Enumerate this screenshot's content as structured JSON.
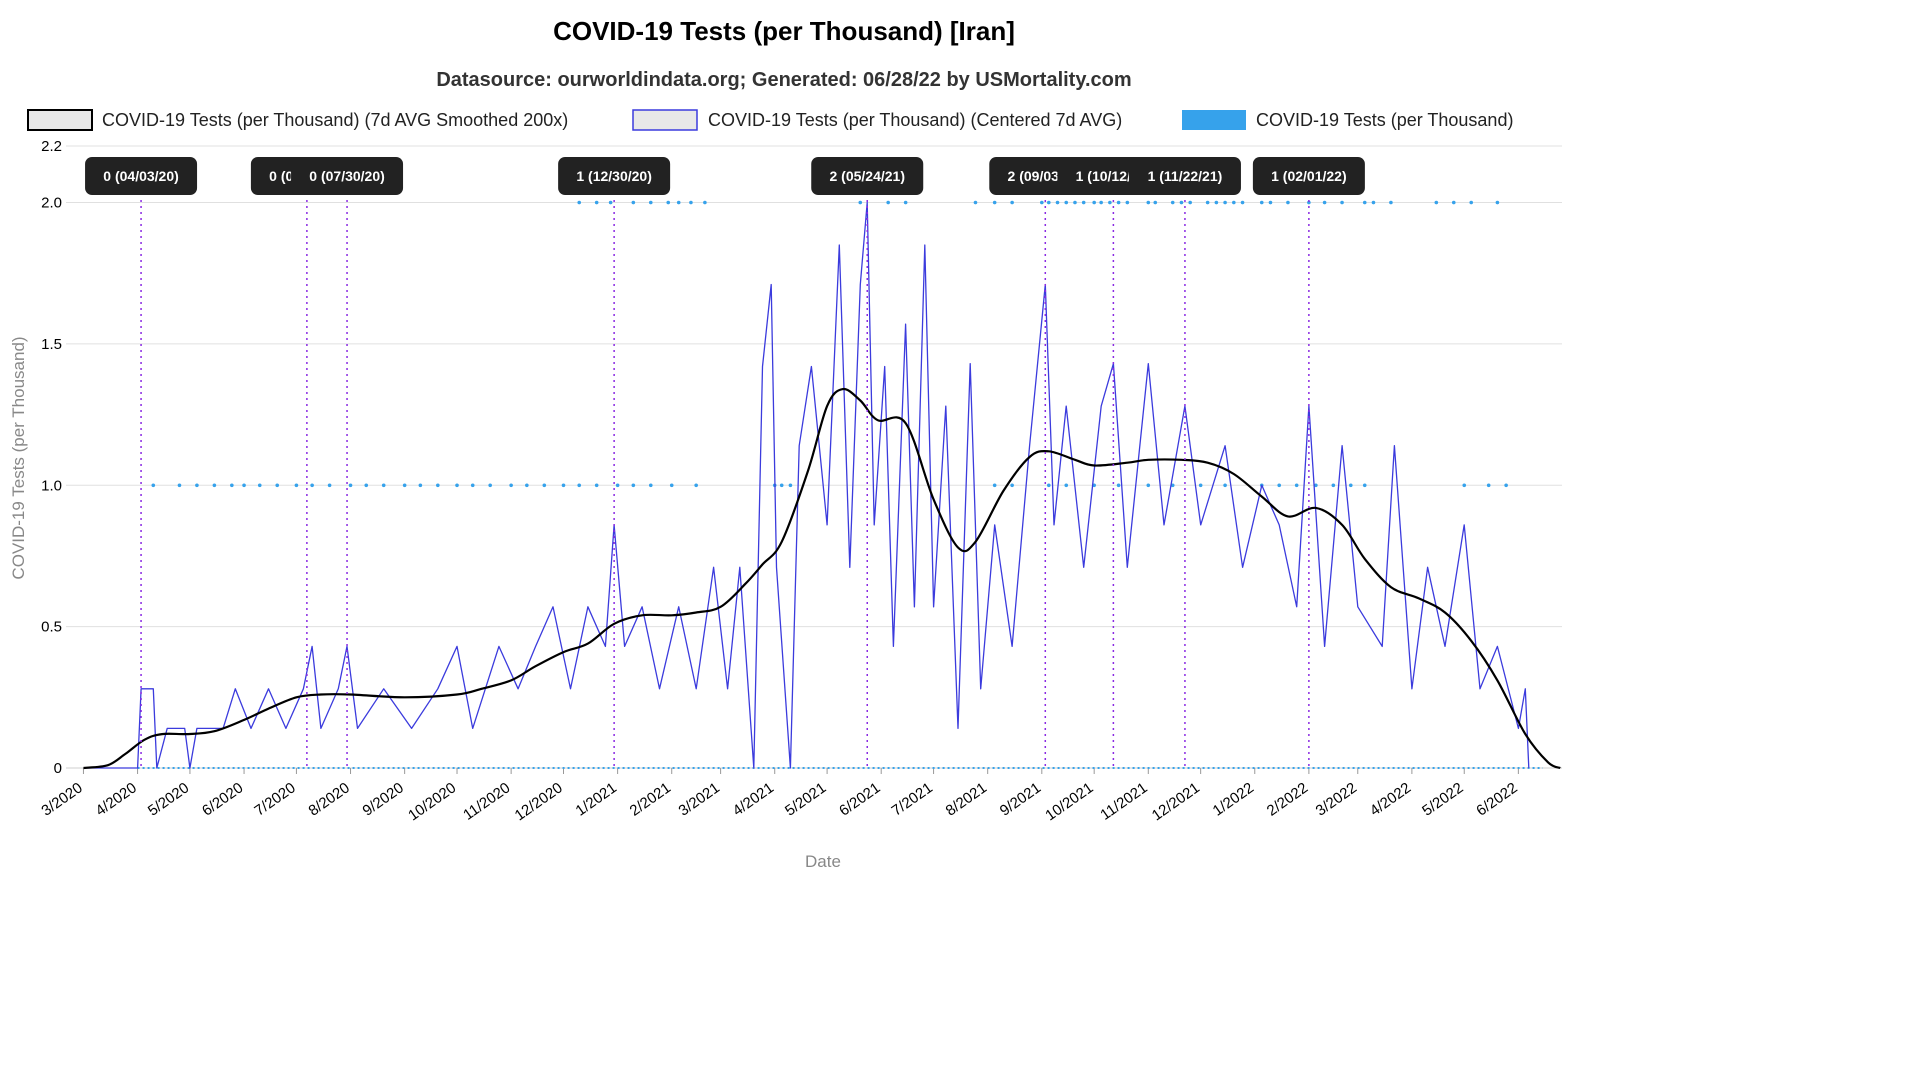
{
  "chart_data": {
    "type": "line",
    "title": "COVID-19 Tests (per Thousand) [Iran]",
    "subtitle": "Datasource: ourworldindata.org; Generated: 06/28/22 by USMortality.com",
    "xlabel": "Date",
    "ylabel": "COVID-19 Tests (per Thousand)",
    "ylim": [
      0,
      2.2
    ],
    "y_ticks": [
      "0",
      "0.5",
      "1.0",
      "1.5",
      "2.0",
      "2.2"
    ],
    "x_ticks": [
      "3/2020",
      "4/2020",
      "5/2020",
      "6/2020",
      "7/2020",
      "8/2020",
      "9/2020",
      "10/2020",
      "11/2020",
      "12/2020",
      "1/2021",
      "2/2021",
      "3/2021",
      "4/2021",
      "5/2021",
      "6/2021",
      "7/2021",
      "8/2021",
      "9/2021",
      "10/2021",
      "11/2021",
      "12/2021",
      "1/2022",
      "2/2022",
      "3/2022",
      "4/2022",
      "5/2022",
      "6/2022"
    ],
    "grid": "horizontal",
    "legend_position": "top",
    "series": [
      {
        "name": "COVID-19 Tests (per Thousand) (7d AVG Smoothed 200x)",
        "color": "#000000",
        "style": "line",
        "points": [
          [
            "2020-03-01",
            0
          ],
          [
            "2020-03-15",
            0.01
          ],
          [
            "2020-03-25",
            0.05
          ],
          [
            "2020-04-05",
            0.1
          ],
          [
            "2020-04-15",
            0.12
          ],
          [
            "2020-04-30",
            0.12
          ],
          [
            "2020-05-15",
            0.13
          ],
          [
            "2020-06-01",
            0.17
          ],
          [
            "2020-06-15",
            0.21
          ],
          [
            "2020-07-01",
            0.25
          ],
          [
            "2020-07-15",
            0.26
          ],
          [
            "2020-08-01",
            0.26
          ],
          [
            "2020-09-01",
            0.25
          ],
          [
            "2020-10-01",
            0.26
          ],
          [
            "2020-10-15",
            0.28
          ],
          [
            "2020-11-01",
            0.31
          ],
          [
            "2020-11-15",
            0.36
          ],
          [
            "2020-12-01",
            0.41
          ],
          [
            "2020-12-15",
            0.44
          ],
          [
            "2020-12-30",
            0.51
          ],
          [
            "2021-01-15",
            0.54
          ],
          [
            "2021-02-01",
            0.54
          ],
          [
            "2021-02-15",
            0.55
          ],
          [
            "2021-03-01",
            0.57
          ],
          [
            "2021-03-15",
            0.65
          ],
          [
            "2021-03-25",
            0.72
          ],
          [
            "2021-04-05",
            0.8
          ],
          [
            "2021-04-20",
            1.05
          ],
          [
            "2021-05-01",
            1.28
          ],
          [
            "2021-05-10",
            1.34
          ],
          [
            "2021-05-20",
            1.3
          ],
          [
            "2021-05-30",
            1.23
          ],
          [
            "2021-06-15",
            1.22
          ],
          [
            "2021-07-01",
            0.95
          ],
          [
            "2021-07-15",
            0.78
          ],
          [
            "2021-07-25",
            0.8
          ],
          [
            "2021-08-10",
            0.98
          ],
          [
            "2021-08-25",
            1.1
          ],
          [
            "2021-09-05",
            1.12
          ],
          [
            "2021-09-20",
            1.09
          ],
          [
            "2021-10-01",
            1.07
          ],
          [
            "2021-10-20",
            1.08
          ],
          [
            "2021-11-01",
            1.09
          ],
          [
            "2021-11-20",
            1.09
          ],
          [
            "2021-12-05",
            1.08
          ],
          [
            "2021-12-20",
            1.04
          ],
          [
            "2022-01-05",
            0.96
          ],
          [
            "2022-01-20",
            0.89
          ],
          [
            "2022-02-05",
            0.92
          ],
          [
            "2022-02-20",
            0.86
          ],
          [
            "2022-03-05",
            0.74
          ],
          [
            "2022-03-20",
            0.64
          ],
          [
            "2022-04-05",
            0.6
          ],
          [
            "2022-04-20",
            0.55
          ],
          [
            "2022-05-05",
            0.45
          ],
          [
            "2022-05-20",
            0.31
          ],
          [
            "2022-06-05",
            0.12
          ],
          [
            "2022-06-18",
            0.02
          ],
          [
            "2022-06-25",
            0
          ]
        ]
      },
      {
        "name": "COVID-19 Tests (per Thousand) (Centered 7d AVG)",
        "color": "#3b3bdd",
        "style": "line",
        "points": [
          [
            "2020-03-01",
            0
          ],
          [
            "2020-04-01",
            0
          ],
          [
            "2020-04-03",
            0.28
          ],
          [
            "2020-04-10",
            0.28
          ],
          [
            "2020-04-12",
            0
          ],
          [
            "2020-04-18",
            0.14
          ],
          [
            "2020-04-28",
            0.14
          ],
          [
            "2020-05-01",
            0
          ],
          [
            "2020-05-05",
            0.14
          ],
          [
            "2020-05-20",
            0.14
          ],
          [
            "2020-05-27",
            0.28
          ],
          [
            "2020-06-05",
            0.14
          ],
          [
            "2020-06-15",
            0.28
          ],
          [
            "2020-06-25",
            0.14
          ],
          [
            "2020-07-05",
            0.28
          ],
          [
            "2020-07-10",
            0.43
          ],
          [
            "2020-07-15",
            0.14
          ],
          [
            "2020-07-25",
            0.28
          ],
          [
            "2020-07-30",
            0.43
          ],
          [
            "2020-08-05",
            0.14
          ],
          [
            "2020-08-20",
            0.28
          ],
          [
            "2020-09-05",
            0.14
          ],
          [
            "2020-09-20",
            0.28
          ],
          [
            "2020-10-01",
            0.43
          ],
          [
            "2020-10-10",
            0.14
          ],
          [
            "2020-10-25",
            0.43
          ],
          [
            "2020-11-05",
            0.28
          ],
          [
            "2020-11-15",
            0.43
          ],
          [
            "2020-11-25",
            0.57
          ],
          [
            "2020-12-05",
            0.28
          ],
          [
            "2020-12-15",
            0.57
          ],
          [
            "2020-12-25",
            0.43
          ],
          [
            "2020-12-30",
            0.86
          ],
          [
            "2021-01-05",
            0.43
          ],
          [
            "2021-01-15",
            0.57
          ],
          [
            "2021-01-25",
            0.28
          ],
          [
            "2021-02-05",
            0.57
          ],
          [
            "2021-02-15",
            0.28
          ],
          [
            "2021-02-25",
            0.71
          ],
          [
            "2021-03-05",
            0.28
          ],
          [
            "2021-03-12",
            0.71
          ],
          [
            "2021-03-20",
            0
          ],
          [
            "2021-03-25",
            1.42
          ],
          [
            "2021-03-30",
            1.71
          ],
          [
            "2021-04-02",
            0.71
          ],
          [
            "2021-04-10",
            0
          ],
          [
            "2021-04-15",
            1.14
          ],
          [
            "2021-04-22",
            1.42
          ],
          [
            "2021-05-01",
            0.86
          ],
          [
            "2021-05-08",
            1.85
          ],
          [
            "2021-05-14",
            0.71
          ],
          [
            "2021-05-20",
            1.71
          ],
          [
            "2021-05-24",
            2.0
          ],
          [
            "2021-05-28",
            0.86
          ],
          [
            "2021-06-03",
            1.42
          ],
          [
            "2021-06-08",
            0.43
          ],
          [
            "2021-06-15",
            1.57
          ],
          [
            "2021-06-20",
            0.57
          ],
          [
            "2021-06-26",
            1.85
          ],
          [
            "2021-07-01",
            0.57
          ],
          [
            "2021-07-08",
            1.28
          ],
          [
            "2021-07-15",
            0.14
          ],
          [
            "2021-07-22",
            1.43
          ],
          [
            "2021-07-28",
            0.28
          ],
          [
            "2021-08-05",
            0.86
          ],
          [
            "2021-08-15",
            0.43
          ],
          [
            "2021-08-25",
            1.14
          ],
          [
            "2021-09-03",
            1.71
          ],
          [
            "2021-09-08",
            0.86
          ],
          [
            "2021-09-15",
            1.28
          ],
          [
            "2021-09-25",
            0.71
          ],
          [
            "2021-10-05",
            1.28
          ],
          [
            "2021-10-12",
            1.43
          ],
          [
            "2021-10-20",
            0.71
          ],
          [
            "2021-11-01",
            1.43
          ],
          [
            "2021-11-10",
            0.86
          ],
          [
            "2021-11-22",
            1.28
          ],
          [
            "2021-12-01",
            0.86
          ],
          [
            "2021-12-15",
            1.14
          ],
          [
            "2021-12-25",
            0.71
          ],
          [
            "2022-01-05",
            1.0
          ],
          [
            "2022-01-15",
            0.86
          ],
          [
            "2022-01-25",
            0.57
          ],
          [
            "2022-02-01",
            1.28
          ],
          [
            "2022-02-10",
            0.43
          ],
          [
            "2022-02-20",
            1.14
          ],
          [
            "2022-03-01",
            0.57
          ],
          [
            "2022-03-15",
            0.43
          ],
          [
            "2022-03-22",
            1.14
          ],
          [
            "2022-04-01",
            0.28
          ],
          [
            "2022-04-10",
            0.71
          ],
          [
            "2022-04-20",
            0.43
          ],
          [
            "2022-05-01",
            0.86
          ],
          [
            "2022-05-10",
            0.28
          ],
          [
            "2022-05-20",
            0.43
          ],
          [
            "2022-06-01",
            0.14
          ],
          [
            "2022-06-05",
            0.28
          ],
          [
            "2022-06-07",
            0
          ]
        ]
      },
      {
        "name": "COVID-19 Tests (per Thousand)",
        "color": "#36a2eb",
        "style": "points",
        "points_at_2": [
          "2020-12-10",
          "2020-12-20",
          "2020-12-28",
          "2021-01-10",
          "2021-01-20",
          "2021-01-30",
          "2021-02-05",
          "2021-02-12",
          "2021-02-20",
          "2021-05-20",
          "2021-06-05",
          "2021-06-15",
          "2021-07-25",
          "2021-08-05",
          "2021-08-15",
          "2021-09-01",
          "2021-09-05",
          "2021-09-10",
          "2021-09-15",
          "2021-09-20",
          "2021-09-25",
          "2021-10-01",
          "2021-10-05",
          "2021-10-10",
          "2021-10-15",
          "2021-10-20",
          "2021-11-01",
          "2021-11-05",
          "2021-11-15",
          "2021-11-20",
          "2021-11-25",
          "2021-12-05",
          "2021-12-10",
          "2021-12-15",
          "2021-12-20",
          "2021-12-25",
          "2022-01-05",
          "2022-01-10",
          "2022-01-20",
          "2022-02-01",
          "2022-02-10",
          "2022-02-20",
          "2022-03-05",
          "2022-03-10",
          "2022-03-20",
          "2022-04-15",
          "2022-04-25",
          "2022-05-05",
          "2022-05-20"
        ],
        "points_at_1": [
          "2020-04-10",
          "2020-04-25",
          "2020-05-05",
          "2020-05-15",
          "2020-05-25",
          "2020-06-01",
          "2020-06-10",
          "2020-06-20",
          "2020-07-01",
          "2020-07-10",
          "2020-07-20",
          "2020-08-01",
          "2020-08-10",
          "2020-08-20",
          "2020-09-01",
          "2020-09-10",
          "2020-09-20",
          "2020-10-01",
          "2020-10-10",
          "2020-10-20",
          "2020-11-01",
          "2020-11-10",
          "2020-11-20",
          "2020-12-01",
          "2020-12-10",
          "2020-12-20",
          "2021-01-01",
          "2021-01-10",
          "2021-01-20",
          "2021-02-01",
          "2021-02-15",
          "2021-04-01",
          "2021-04-05",
          "2021-04-10",
          "2021-08-05",
          "2021-08-15",
          "2021-09-05",
          "2021-09-15",
          "2021-10-01",
          "2021-10-15",
          "2021-11-01",
          "2021-11-15",
          "2021-12-01",
          "2021-12-15",
          "2022-01-05",
          "2022-01-15",
          "2022-01-25",
          "2022-02-05",
          "2022-02-15",
          "2022-02-25",
          "2022-03-05",
          "2022-05-01",
          "2022-05-15",
          "2022-05-25"
        ]
      }
    ],
    "annotations": [
      {
        "date": "2020-04-03",
        "label": "0 (04/03/20)"
      },
      {
        "date": "2020-07-07",
        "label": "0 (07/07/20)"
      },
      {
        "date": "2020-07-30",
        "label": "0 (07/30/20)"
      },
      {
        "date": "2020-12-30",
        "label": "1 (12/30/20)"
      },
      {
        "date": "2021-05-24",
        "label": "2 (05/24/21)"
      },
      {
        "date": "2021-09-03",
        "label": "2 (09/03/21)"
      },
      {
        "date": "2021-10-12",
        "label": "1 (10/12/21)"
      },
      {
        "date": "2021-11-22",
        "label": "1 (11/22/21)"
      },
      {
        "date": "2022-02-01",
        "label": "1 (02/01/22)"
      }
    ],
    "colors": {
      "smoothed": "#000000",
      "centered": "#3b3bdd",
      "raw": "#36a2eb",
      "annotation_line": "#8a2be2",
      "annotation_box": "#222222",
      "grid": "#e0e0e0"
    }
  }
}
